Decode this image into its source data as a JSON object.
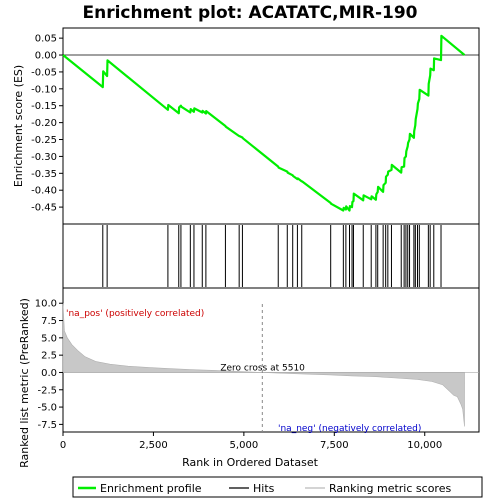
{
  "chart_data": {
    "type": "line",
    "title": "Enrichment plot: ACATATC,MIR-190",
    "xlabel": "Rank in Ordered Dataset",
    "top_ylabel": "Enrichment score (ES)",
    "bottom_ylabel": "Ranked list metric (PreRanked)",
    "xlim": [
      0,
      11500
    ],
    "es_ylim": [
      -0.5,
      0.08
    ],
    "metric_ylim": [
      -8.6,
      12.2
    ],
    "x_ticks": [
      "0",
      "2,500",
      "5,000",
      "7,500",
      "10,000"
    ],
    "x_tick_values": [
      0,
      2500,
      5000,
      7500,
      10000
    ],
    "es_ticks": [
      "0.05",
      "0.00",
      "-0.05",
      "-0.10",
      "-0.15",
      "-0.20",
      "-0.25",
      "-0.30",
      "-0.35",
      "-0.40",
      "-0.45"
    ],
    "es_tick_values": [
      0.05,
      0.0,
      -0.05,
      -0.1,
      -0.15,
      -0.2,
      -0.25,
      -0.3,
      -0.35,
      -0.4,
      -0.45
    ],
    "metric_ticks": [
      "10.0",
      "7.5",
      "5.0",
      "2.5",
      "0.0",
      "-2.5",
      "-5.0",
      "-7.5"
    ],
    "metric_tick_values": [
      10.0,
      7.5,
      5.0,
      2.5,
      0.0,
      -2.5,
      -5.0,
      -7.5
    ],
    "series": [
      {
        "name": "Enrichment profile",
        "color": "#00ee00",
        "x": [
          0,
          1100,
          1110,
          1220,
          1230,
          2900,
          2910,
          3200,
          3210,
          3260,
          3270,
          3520,
          3530,
          3620,
          3630,
          3850,
          3860,
          3950,
          3960,
          4490,
          4500,
          4870,
          4880,
          4960,
          4970,
          5950,
          5960,
          6200,
          6210,
          6350,
          6360,
          6480,
          6490,
          6600,
          6610,
          7400,
          7410,
          7750,
          7760,
          7820,
          7830,
          7920,
          7930,
          7990,
          8000,
          8030,
          8040,
          8300,
          8310,
          8520,
          8530,
          8650,
          8660,
          8700,
          8710,
          8850,
          8860,
          8920,
          8930,
          8980,
          8990,
          9080,
          9090,
          9350,
          9360,
          9430,
          9440,
          9480,
          9490,
          9530,
          9540,
          9580,
          9590,
          9700,
          9710,
          9740,
          9750,
          9800,
          9810,
          9850,
          9860,
          10100,
          10110,
          10150,
          10160,
          10250,
          10260,
          10450,
          10460,
          11100
        ],
        "y": [
          0.0,
          -0.095,
          -0.048,
          -0.062,
          -0.016,
          -0.162,
          -0.148,
          -0.172,
          -0.155,
          -0.15,
          -0.153,
          -0.17,
          -0.16,
          -0.168,
          -0.158,
          -0.17,
          -0.165,
          -0.173,
          -0.166,
          -0.21,
          -0.212,
          -0.24,
          -0.24,
          -0.244,
          -0.246,
          -0.33,
          -0.333,
          -0.345,
          -0.348,
          -0.356,
          -0.358,
          -0.367,
          -0.365,
          -0.374,
          -0.374,
          -0.438,
          -0.44,
          -0.46,
          -0.452,
          -0.457,
          -0.448,
          -0.46,
          -0.447,
          -0.45,
          -0.435,
          -0.432,
          -0.41,
          -0.43,
          -0.415,
          -0.427,
          -0.418,
          -0.428,
          -0.412,
          -0.405,
          -0.39,
          -0.405,
          -0.385,
          -0.378,
          -0.36,
          -0.354,
          -0.345,
          -0.34,
          -0.325,
          -0.348,
          -0.332,
          -0.33,
          -0.305,
          -0.3,
          -0.285,
          -0.27,
          -0.26,
          -0.25,
          -0.233,
          -0.245,
          -0.225,
          -0.208,
          -0.19,
          -0.16,
          -0.143,
          -0.13,
          -0.103,
          -0.12,
          -0.085,
          -0.06,
          -0.04,
          -0.045,
          -0.01,
          -0.015,
          0.057,
          0.0
        ]
      }
    ],
    "hits": [
      1100,
      1220,
      2900,
      3200,
      3260,
      3520,
      3620,
      3850,
      3950,
      4490,
      4870,
      4960,
      5950,
      6200,
      6350,
      6480,
      6600,
      7400,
      7750,
      7820,
      7920,
      7990,
      8030,
      8300,
      8520,
      8650,
      8700,
      8850,
      8920,
      8980,
      9080,
      9350,
      9430,
      9480,
      9530,
      9580,
      9700,
      9740,
      9800,
      9850,
      10100,
      10150,
      10250,
      10450
    ],
    "metric_curve": {
      "x": [
        0,
        40,
        120,
        250,
        400,
        600,
        900,
        1300,
        1800,
        2400,
        3000,
        3600,
        4200,
        4800,
        5510,
        6200,
        6800,
        7400,
        8000,
        8600,
        9200,
        9800,
        10200,
        10500,
        10700,
        10800,
        10900,
        11000,
        11050,
        11100
      ],
      "y": [
        10.0,
        6.0,
        5.0,
        4.0,
        3.2,
        2.3,
        1.6,
        1.2,
        0.9,
        0.7,
        0.55,
        0.4,
        0.3,
        0.15,
        0.0,
        -0.15,
        -0.25,
        -0.35,
        -0.5,
        -0.6,
        -0.8,
        -1.0,
        -1.3,
        -1.8,
        -2.8,
        -3.3,
        -3.5,
        -4.6,
        -5.3,
        -7.8
      ]
    },
    "zero_cross_label": "Zero cross at 5510",
    "zero_cross": 5510,
    "pos_label": "'na_pos' (positively correlated)",
    "neg_label": "'na_neg' (negatively correlated)",
    "legend": [
      {
        "label": "Enrichment profile",
        "color": "#00ee00"
      },
      {
        "label": "Hits",
        "color": "#000000"
      },
      {
        "label": "Ranking metric scores",
        "color": "#bbbbbb"
      }
    ]
  }
}
